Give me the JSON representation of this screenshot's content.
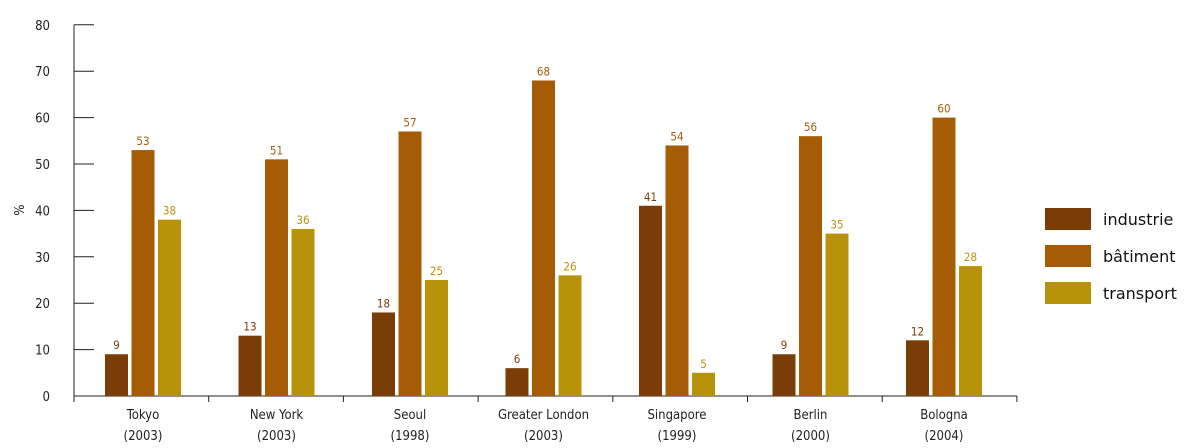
{
  "chart_data": {
    "type": "bar",
    "ylabel": "%",
    "xlabel": "",
    "ylim": [
      0,
      80
    ],
    "yticks": [
      "0",
      "10",
      "20",
      "30",
      "40",
      "50",
      "60",
      "70",
      "80"
    ],
    "categories": [
      {
        "name": "Tokyo",
        "year": "(2003)"
      },
      {
        "name": "New York",
        "year": "(2003)"
      },
      {
        "name": "Seoul",
        "year": "(1998)"
      },
      {
        "name": "Greater London",
        "year": "(2003)"
      },
      {
        "name": "Singapore",
        "year": "(1999)"
      },
      {
        "name": "Berlin",
        "year": "(2000)"
      },
      {
        "name": "Bologna",
        "year": "(2004)"
      }
    ],
    "series": [
      {
        "name": "industrie",
        "color": "#7a3d06",
        "label_color": "#7a3d06",
        "values": [
          9,
          13,
          18,
          6,
          41,
          9,
          12
        ]
      },
      {
        "name": "bâtiment",
        "color": "#a65c05",
        "label_color": "#a65c05",
        "values": [
          53,
          51,
          57,
          68,
          54,
          56,
          60
        ]
      },
      {
        "name": "transport",
        "color": "#b8920a",
        "label_color": "#b8920a",
        "values": [
          38,
          36,
          25,
          26,
          5,
          35,
          28
        ]
      }
    ],
    "legend_position": "right",
    "grid": false
  }
}
